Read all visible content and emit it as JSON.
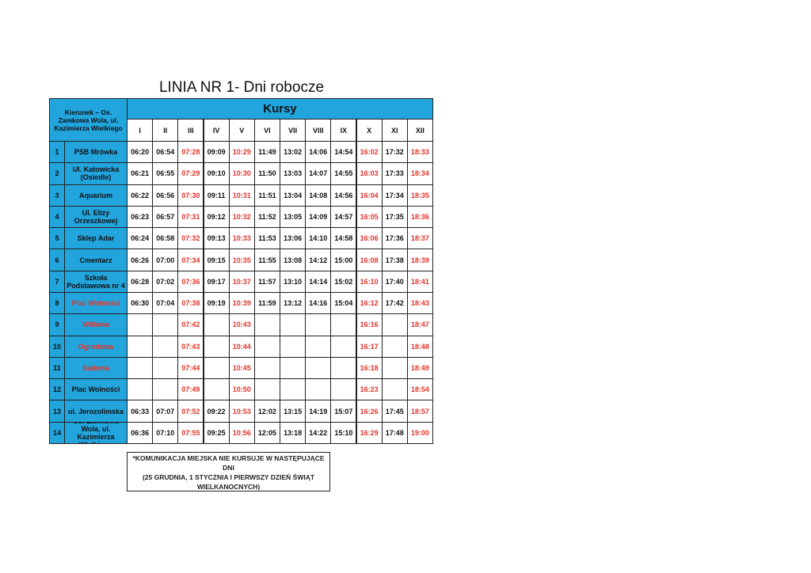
{
  "title": "LINIA NR 1- Dni robocze",
  "table": {
    "header": {
      "direction": "Kierunek – Os. Zamkowa Wola, ul. Kazimierza Wielkiego",
      "courses": "Kursy"
    },
    "columns": [
      "I",
      "II",
      "III",
      "IV",
      "V",
      "VI",
      "VII",
      "VIII",
      "IX",
      "X",
      "XI",
      "XII"
    ],
    "rows": [
      {
        "num": 1,
        "stop": "PSB Mrówka",
        "times": [
          "06:20",
          "06:54",
          "07:28",
          "09:09",
          "10:29",
          "11:49",
          "13:02",
          "14:06",
          "14:54",
          "16:02",
          "17:32",
          "18:33"
        ]
      },
      {
        "num": 2,
        "stop": "Ul. Katowicka (Osiedle)",
        "times": [
          "06:21",
          "06:55",
          "07:29",
          "09:10",
          "10:30",
          "11:50",
          "13:03",
          "14:07",
          "14:55",
          "16:03",
          "17:33",
          "18:34"
        ]
      },
      {
        "num": 3,
        "stop": "Aquarium",
        "times": [
          "06:22",
          "06:56",
          "07:30",
          "09:11",
          "10:31",
          "11:51",
          "13:04",
          "14:08",
          "14:56",
          "16:04",
          "17:34",
          "18:35"
        ]
      },
      {
        "num": 4,
        "stop": "Ul. Elizy Orzeszkowej",
        "times": [
          "06:23",
          "06:57",
          "07:31",
          "09:12",
          "10:32",
          "11:52",
          "13:05",
          "14:09",
          "14:57",
          "16:05",
          "17:35",
          "18:36"
        ]
      },
      {
        "num": 5,
        "stop": "Sklep Adar",
        "times": [
          "06:24",
          "06:58",
          "07:32",
          "09:13",
          "10:33",
          "11:53",
          "13:06",
          "14:10",
          "14:58",
          "16:06",
          "17:36",
          "18:37"
        ]
      },
      {
        "num": 6,
        "stop": "Cmentarz",
        "times": [
          "06:26",
          "07:00",
          "07:34",
          "09:15",
          "10:35",
          "11:55",
          "13:08",
          "14:12",
          "15:00",
          "16:08",
          "17:38",
          "18:39"
        ]
      },
      {
        "num": 7,
        "stop": "Szkoła Podstawowa nr 4",
        "times": [
          "06:28",
          "07:02",
          "07:36",
          "09:17",
          "10:37",
          "11:57",
          "13:10",
          "14:14",
          "15:02",
          "16:10",
          "17:40",
          "18:41"
        ]
      },
      {
        "num": 8,
        "stop": "Plac Wolności",
        "times": [
          "06:30",
          "07:04",
          "07:38",
          "09:19",
          "10:39",
          "11:59",
          "13:12",
          "14:16",
          "15:04",
          "16:12",
          "17:42",
          "18:43"
        ]
      },
      {
        "num": 9,
        "stop": "Willowa",
        "times": [
          null,
          null,
          "07:42",
          null,
          "10:43",
          null,
          null,
          null,
          null,
          "16:16",
          null,
          "18:47"
        ]
      },
      {
        "num": 10,
        "stop": "Ogrodowa",
        "times": [
          null,
          null,
          "07:43",
          null,
          "10:44",
          null,
          null,
          null,
          null,
          "16:17",
          null,
          "18:48"
        ]
      },
      {
        "num": 11,
        "stop": "Sadowa",
        "times": [
          null,
          null,
          "07:44",
          null,
          "10:45",
          null,
          null,
          null,
          null,
          "16:18",
          null,
          "18:49"
        ]
      },
      {
        "num": 12,
        "stop": "Plac Wolności",
        "times": [
          null,
          null,
          "07:49",
          null,
          "10:50",
          null,
          null,
          null,
          null,
          "16:23",
          null,
          "18:54"
        ]
      },
      {
        "num": 13,
        "stop": "ul. Jerozolimska",
        "times": [
          "06:33",
          "07:07",
          "07:52",
          "09:22",
          "10:53",
          "12:02",
          "13:15",
          "14:19",
          "15:07",
          "16:26",
          "17:45",
          "18:57"
        ]
      },
      {
        "num": 14,
        "stop": "Os. Zamkowa Wola, ul. Kazimierza Wielkiego",
        "times": [
          "06:36",
          "07:10",
          "07:55",
          "09:25",
          "10:56",
          "12:05",
          "13:18",
          "14:22",
          "15:10",
          "16:29",
          "17:48",
          "19:00"
        ]
      }
    ]
  },
  "note": {
    "lines": [
      "*KOMUNIKACJA MIEJSKA NIE KURSUJE W NASTĘPUJĄCE DNI",
      "(25 GRUDNIA, 1 STYCZNIA I PIERWSZY DZIEŃ ŚWIĄT WIELKANOCNYCH)"
    ]
  }
}
